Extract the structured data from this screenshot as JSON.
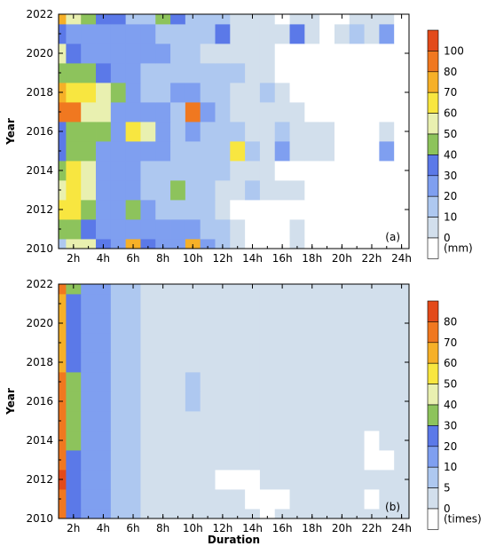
{
  "chart_data": [
    {
      "type": "heatmap",
      "panel_label": "(a)",
      "ylabel": "Year",
      "xlabel": "",
      "x_tick_labels": [
        "2h",
        "4h",
        "6h",
        "8h",
        "10h",
        "12h",
        "14h",
        "16h",
        "18h",
        "20h",
        "22h",
        "24h"
      ],
      "y_tick_labels": [
        "2010",
        "2012",
        "2014",
        "2016",
        "2018",
        "2020",
        "2022"
      ],
      "xlim": [
        1,
        24
      ],
      "ylim": [
        2010,
        2022
      ],
      "colorbar": {
        "levels": [
          0,
          10,
          20,
          30,
          40,
          50,
          60,
          70,
          80,
          100
        ],
        "labels": [
          "0",
          "10",
          "20",
          "30",
          "40",
          "50",
          "60",
          "70",
          "80",
          "100"
        ],
        "unit": "(mm)"
      },
      "colors": [
        "#ffffff",
        "#d2dfec",
        "#aec8f0",
        "#7f9ff0",
        "#5b79e8",
        "#8dc35c",
        "#e9f0b0",
        "#f8e640",
        "#f6b028",
        "#f07820",
        "#e34a1a"
      ],
      "grid": false,
      "years": [
        2010,
        2011,
        2012,
        2013,
        2014,
        2015,
        2016,
        2017,
        2018,
        2019,
        2020,
        2021,
        2022
      ],
      "hours": [
        1,
        2,
        3,
        4,
        5,
        6,
        7,
        8,
        9,
        10,
        11,
        12,
        13,
        14,
        15,
        16,
        17,
        18,
        19,
        20,
        21,
        22,
        23,
        24
      ],
      "values": [
        [
          20,
          55,
          60,
          35,
          30,
          75,
          35,
          30,
          25,
          75,
          25,
          15,
          8,
          0,
          0,
          0,
          5,
          0,
          0,
          0,
          0,
          0,
          0,
          0
        ],
        [
          45,
          45,
          35,
          30,
          30,
          30,
          30,
          25,
          25,
          25,
          20,
          15,
          5,
          0,
          0,
          0,
          3,
          0,
          0,
          0,
          0,
          0,
          0,
          0
        ],
        [
          65,
          65,
          45,
          25,
          25,
          45,
          25,
          15,
          15,
          15,
          15,
          5,
          0,
          0,
          0,
          0,
          0,
          0,
          0,
          0,
          0,
          0,
          0,
          0
        ],
        [
          60,
          70,
          60,
          30,
          25,
          25,
          20,
          15,
          50,
          20,
          15,
          10,
          10,
          15,
          10,
          10,
          5,
          0,
          0,
          0,
          0,
          0,
          0,
          0
        ],
        [
          50,
          65,
          55,
          30,
          25,
          25,
          20,
          15,
          15,
          20,
          15,
          15,
          10,
          10,
          5,
          0,
          0,
          0,
          0,
          0,
          0,
          0,
          0,
          0
        ],
        [
          40,
          50,
          45,
          30,
          30,
          30,
          30,
          30,
          20,
          20,
          15,
          15,
          65,
          15,
          10,
          25,
          10,
          10,
          5,
          0,
          0,
          0,
          25,
          0
        ],
        [
          35,
          50,
          45,
          45,
          25,
          65,
          55,
          30,
          15,
          30,
          15,
          15,
          15,
          10,
          5,
          15,
          5,
          5,
          5,
          0,
          0,
          0,
          5,
          0
        ],
        [
          85,
          85,
          60,
          55,
          30,
          25,
          25,
          30,
          20,
          85,
          30,
          15,
          10,
          10,
          5,
          10,
          5,
          0,
          0,
          0,
          0,
          0,
          0,
          0
        ],
        [
          75,
          70,
          65,
          60,
          50,
          25,
          20,
          20,
          25,
          30,
          15,
          15,
          10,
          10,
          15,
          10,
          0,
          0,
          0,
          0,
          0,
          0,
          0,
          0
        ],
        [
          45,
          50,
          45,
          40,
          30,
          30,
          20,
          20,
          20,
          20,
          20,
          15,
          15,
          10,
          5,
          0,
          0,
          0,
          0,
          0,
          0,
          0,
          0,
          0
        ],
        [
          55,
          35,
          30,
          30,
          30,
          30,
          25,
          25,
          15,
          15,
          10,
          10,
          10,
          5,
          5,
          0,
          0,
          0,
          0,
          0,
          0,
          0,
          0,
          0
        ],
        [
          35,
          30,
          30,
          25,
          30,
          25,
          25,
          15,
          20,
          15,
          15,
          35,
          10,
          10,
          5,
          10,
          35,
          10,
          0,
          10,
          15,
          10,
          25,
          0
        ],
        [
          75,
          60,
          50,
          40,
          35,
          20,
          20,
          45,
          35,
          20,
          15,
          15,
          10,
          5,
          5,
          0,
          5,
          5,
          0,
          0,
          5,
          5,
          5,
          0
        ]
      ]
    },
    {
      "type": "heatmap",
      "panel_label": "(b)",
      "ylabel": "Year",
      "xlabel": "Duration",
      "x_tick_labels": [
        "2h",
        "4h",
        "6h",
        "8h",
        "10h",
        "12h",
        "14h",
        "16h",
        "18h",
        "20h",
        "22h",
        "24h"
      ],
      "y_tick_labels": [
        "2010",
        "2012",
        "2014",
        "2016",
        "2018",
        "2020",
        "2022"
      ],
      "xlim": [
        1,
        24
      ],
      "ylim": [
        2010,
        2022
      ],
      "colorbar": {
        "levels": [
          0,
          5,
          10,
          20,
          30,
          40,
          50,
          60,
          70,
          80
        ],
        "labels": [
          "0",
          "5",
          "10",
          "20",
          "30",
          "40",
          "50",
          "60",
          "70",
          "80"
        ],
        "unit": "(times)"
      },
      "colors": [
        "#ffffff",
        "#d2dfec",
        "#aec8f0",
        "#7f9ff0",
        "#5b79e8",
        "#8dc35c",
        "#e9f0b0",
        "#f8e640",
        "#f6b028",
        "#f07820",
        "#e34a1a"
      ],
      "grid": false,
      "years": [
        2010,
        2011,
        2012,
        2013,
        2014,
        2015,
        2016,
        2017,
        2018,
        2019,
        2020,
        2021,
        2022
      ],
      "hours": [
        1,
        2,
        3,
        4,
        5,
        6,
        7,
        8,
        9,
        10,
        11,
        12,
        13,
        14,
        15,
        16,
        17,
        18,
        19,
        20,
        21,
        22,
        23,
        24
      ],
      "values": [
        [
          78,
          25,
          20,
          12,
          10,
          8,
          5,
          5,
          4,
          4,
          4,
          3,
          3,
          3,
          0,
          3,
          3,
          3,
          3,
          3,
          3,
          3,
          3,
          3
        ],
        [
          80,
          28,
          20,
          15,
          10,
          8,
          5,
          5,
          3,
          3,
          3,
          3,
          3,
          0,
          0,
          0,
          3,
          3,
          3,
          3,
          3,
          0,
          3,
          3
        ],
        [
          85,
          30,
          20,
          15,
          10,
          8,
          5,
          3,
          3,
          3,
          3,
          0,
          0,
          0,
          3,
          3,
          3,
          3,
          3,
          3,
          3,
          3,
          3,
          3
        ],
        [
          78,
          30,
          20,
          15,
          10,
          8,
          5,
          3,
          3,
          3,
          3,
          3,
          3,
          3,
          3,
          3,
          3,
          3,
          3,
          3,
          3,
          0,
          0,
          3
        ],
        [
          76,
          32,
          20,
          15,
          10,
          8,
          5,
          3,
          3,
          3,
          3,
          3,
          3,
          3,
          3,
          3,
          3,
          3,
          3,
          3,
          3,
          0,
          3,
          3
        ],
        [
          74,
          32,
          20,
          15,
          10,
          8,
          5,
          3,
          3,
          3,
          3,
          3,
          3,
          3,
          3,
          3,
          3,
          3,
          3,
          3,
          3,
          3,
          3,
          3
        ],
        [
          75,
          35,
          20,
          15,
          10,
          7,
          5,
          3,
          3,
          7,
          3,
          3,
          3,
          3,
          3,
          3,
          3,
          3,
          3,
          3,
          3,
          3,
          3,
          3
        ],
        [
          72,
          32,
          20,
          12,
          10,
          7,
          5,
          3,
          3,
          7,
          3,
          3,
          3,
          3,
          3,
          3,
          3,
          3,
          3,
          3,
          3,
          3,
          3,
          3
        ],
        [
          70,
          30,
          20,
          15,
          10,
          7,
          5,
          3,
          3,
          3,
          3,
          3,
          3,
          3,
          3,
          3,
          3,
          3,
          3,
          3,
          3,
          3,
          3,
          3
        ],
        [
          62,
          30,
          18,
          15,
          10,
          7,
          5,
          3,
          3,
          3,
          3,
          3,
          3,
          3,
          3,
          3,
          3,
          3,
          3,
          3,
          3,
          3,
          3,
          3
        ],
        [
          62,
          28,
          15,
          15,
          10,
          7,
          5,
          3,
          3,
          3,
          3,
          3,
          3,
          3,
          3,
          3,
          3,
          3,
          3,
          3,
          3,
          3,
          3,
          3
        ],
        [
          62,
          28,
          15,
          15,
          10,
          7,
          5,
          3,
          3,
          3,
          3,
          3,
          3,
          3,
          3,
          3,
          3,
          3,
          3,
          3,
          3,
          3,
          3,
          3
        ],
        [
          80,
          32,
          20,
          15,
          10,
          7,
          5,
          3,
          3,
          3,
          3,
          3,
          3,
          3,
          3,
          3,
          3,
          3,
          3,
          3,
          3,
          3,
          3,
          3
        ]
      ]
    }
  ]
}
